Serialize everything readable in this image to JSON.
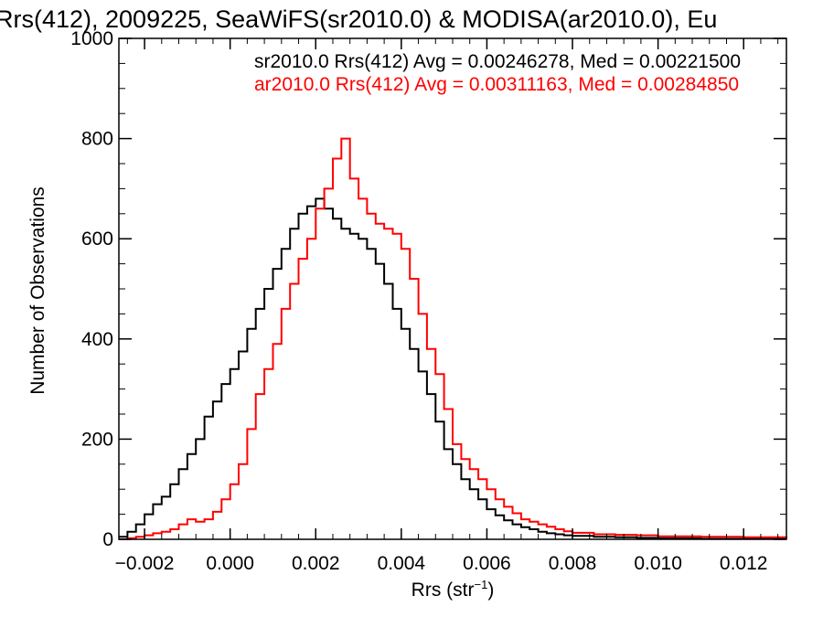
{
  "chart_data": {
    "type": "line",
    "title": "Rrs(412), 2009225, SeaWiFS(sr2010.0) & MODISA(ar2010.0), Eu",
    "xlabel": "Rrs (str",
    "xlabel_sup": "−1",
    "xlabel_close": ")",
    "ylabel": "Number of Observations",
    "xlim": [
      -0.0026,
      0.013
    ],
    "ylim": [
      0,
      1000
    ],
    "x_ticks": [
      -0.002,
      0.0,
      0.002,
      0.004,
      0.006,
      0.008,
      0.01,
      0.012
    ],
    "x_tick_labels": [
      "−0.002",
      "0.000",
      "0.002",
      "0.004",
      "0.006",
      "0.008",
      "0.010",
      "0.012"
    ],
    "y_ticks": [
      0,
      200,
      400,
      600,
      800,
      1000
    ],
    "y_tick_labels": [
      "0",
      "200",
      "400",
      "600",
      "800",
      "1000"
    ],
    "grid": false,
    "legend": "top-right",
    "annotations": [
      "sr2010.0 Rrs(412) Avg = 0.00246278, Med = 0.00221500",
      "ar2010.0 Rrs(412) Avg = 0.00311163, Med = 0.00284850"
    ],
    "series": [
      {
        "color": "#000000",
        "points": [
          [
            -0.0026,
            5
          ],
          [
            -0.0024,
            15
          ],
          [
            -0.0022,
            30
          ],
          [
            -0.002,
            50
          ],
          [
            -0.0018,
            70
          ],
          [
            -0.0016,
            85
          ],
          [
            -0.0014,
            110
          ],
          [
            -0.0012,
            140
          ],
          [
            -0.001,
            170
          ],
          [
            -0.0008,
            200
          ],
          [
            -0.0006,
            245
          ],
          [
            -0.0004,
            275
          ],
          [
            -0.0002,
            310
          ],
          [
            0.0,
            340
          ],
          [
            0.0002,
            375
          ],
          [
            0.0004,
            420
          ],
          [
            0.0006,
            460
          ],
          [
            0.0008,
            500
          ],
          [
            0.001,
            540
          ],
          [
            0.0012,
            580
          ],
          [
            0.0014,
            620
          ],
          [
            0.0016,
            650
          ],
          [
            0.0018,
            665
          ],
          [
            0.002,
            680
          ],
          [
            0.0022,
            660
          ],
          [
            0.0024,
            640
          ],
          [
            0.0026,
            620
          ],
          [
            0.0028,
            610
          ],
          [
            0.003,
            600
          ],
          [
            0.0032,
            580
          ],
          [
            0.0034,
            550
          ],
          [
            0.0036,
            510
          ],
          [
            0.0038,
            460
          ],
          [
            0.004,
            420
          ],
          [
            0.0042,
            380
          ],
          [
            0.0044,
            335
          ],
          [
            0.0046,
            290
          ],
          [
            0.0048,
            235
          ],
          [
            0.005,
            180
          ],
          [
            0.0052,
            150
          ],
          [
            0.0054,
            120
          ],
          [
            0.0056,
            100
          ],
          [
            0.0058,
            80
          ],
          [
            0.006,
            60
          ],
          [
            0.0062,
            48
          ],
          [
            0.0064,
            38
          ],
          [
            0.0066,
            30
          ],
          [
            0.0068,
            24
          ],
          [
            0.007,
            20
          ],
          [
            0.0072,
            15
          ],
          [
            0.0074,
            12
          ],
          [
            0.0076,
            10
          ],
          [
            0.0078,
            8
          ],
          [
            0.008,
            7
          ],
          [
            0.0085,
            5
          ],
          [
            0.009,
            4
          ],
          [
            0.0095,
            3
          ],
          [
            0.01,
            2
          ],
          [
            0.011,
            1
          ],
          [
            0.012,
            1
          ],
          [
            0.013,
            1
          ]
        ]
      },
      {
        "color": "#ff0000",
        "points": [
          [
            -0.0026,
            0
          ],
          [
            -0.0024,
            2
          ],
          [
            -0.0022,
            5
          ],
          [
            -0.002,
            8
          ],
          [
            -0.0018,
            12
          ],
          [
            -0.0016,
            15
          ],
          [
            -0.0014,
            20
          ],
          [
            -0.0012,
            30
          ],
          [
            -0.001,
            40
          ],
          [
            -0.0008,
            35
          ],
          [
            -0.0006,
            40
          ],
          [
            -0.0004,
            55
          ],
          [
            -0.0002,
            80
          ],
          [
            0.0,
            110
          ],
          [
            0.0002,
            150
          ],
          [
            0.0004,
            220
          ],
          [
            0.0006,
            290
          ],
          [
            0.0008,
            340
          ],
          [
            0.001,
            390
          ],
          [
            0.0012,
            460
          ],
          [
            0.0014,
            510
          ],
          [
            0.0016,
            560
          ],
          [
            0.0018,
            600
          ],
          [
            0.002,
            660
          ],
          [
            0.0022,
            700
          ],
          [
            0.0024,
            760
          ],
          [
            0.0026,
            800
          ],
          [
            0.0028,
            720
          ],
          [
            0.003,
            680
          ],
          [
            0.0032,
            650
          ],
          [
            0.0034,
            630
          ],
          [
            0.0036,
            620
          ],
          [
            0.0038,
            610
          ],
          [
            0.004,
            580
          ],
          [
            0.0042,
            520
          ],
          [
            0.0044,
            450
          ],
          [
            0.0046,
            380
          ],
          [
            0.0048,
            330
          ],
          [
            0.005,
            260
          ],
          [
            0.0052,
            190
          ],
          [
            0.0054,
            160
          ],
          [
            0.0056,
            140
          ],
          [
            0.0058,
            120
          ],
          [
            0.006,
            100
          ],
          [
            0.0062,
            80
          ],
          [
            0.0064,
            65
          ],
          [
            0.0066,
            52
          ],
          [
            0.0068,
            40
          ],
          [
            0.007,
            35
          ],
          [
            0.0072,
            30
          ],
          [
            0.0074,
            25
          ],
          [
            0.0076,
            20
          ],
          [
            0.0078,
            16
          ],
          [
            0.008,
            13
          ],
          [
            0.0085,
            10
          ],
          [
            0.009,
            9
          ],
          [
            0.0095,
            8
          ],
          [
            0.01,
            6
          ],
          [
            0.011,
            5
          ],
          [
            0.012,
            4
          ],
          [
            0.013,
            3
          ]
        ]
      }
    ]
  }
}
